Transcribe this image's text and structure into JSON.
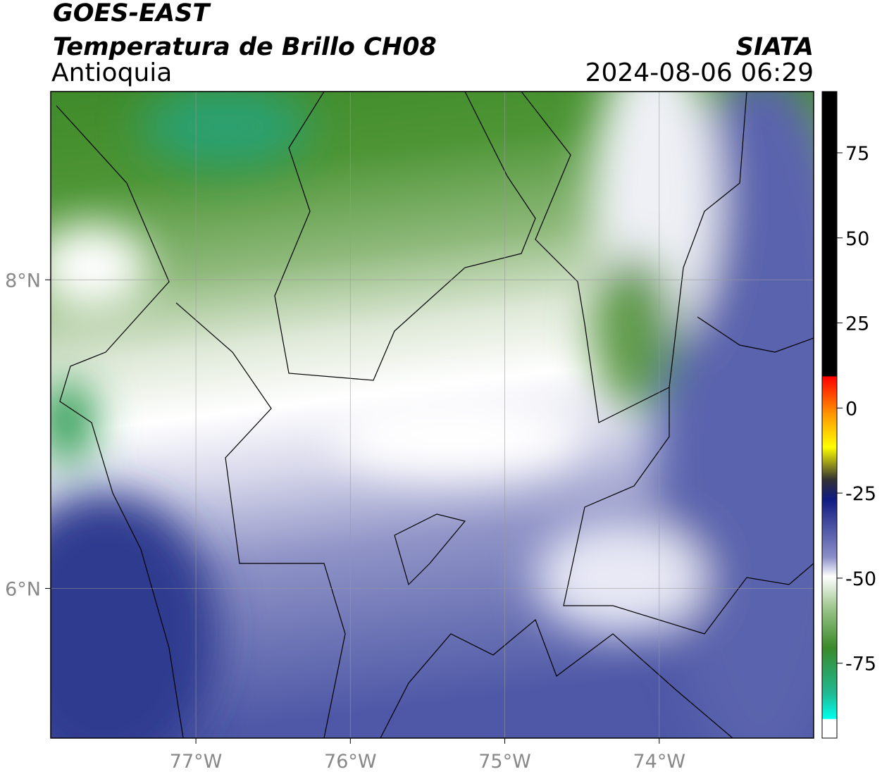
{
  "title": "GOES-EAST",
  "subtitle": "Temperatura de Brillo CH08",
  "region": "Antioquia",
  "source": "SIATA",
  "datetime": "2024-08-06 06:29",
  "map": {
    "xlim": [
      -77.94,
      -73.0
    ],
    "ylim": [
      5.03,
      9.22
    ],
    "xticks": [
      {
        "value": -77,
        "label": "77°W"
      },
      {
        "value": -76,
        "label": "76°W"
      },
      {
        "value": -75,
        "label": "75°W"
      },
      {
        "value": -74,
        "label": "74°W"
      }
    ],
    "yticks": [
      {
        "value": 8,
        "label": "8°N"
      },
      {
        "value": 6,
        "label": "6°N"
      }
    ]
  },
  "colorbar": {
    "lim": [
      -97,
      93
    ],
    "ticks": [
      75,
      50,
      25,
      0,
      -25,
      -50,
      -75
    ]
  }
}
